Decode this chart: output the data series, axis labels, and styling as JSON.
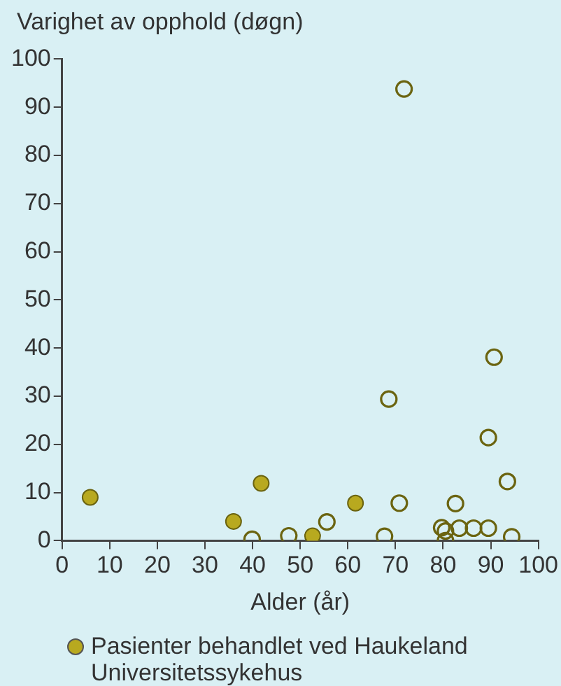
{
  "chart_data": {
    "type": "scatter",
    "ylabel": "Varighet av opphold (døgn)",
    "xlabel": "Alder (år)",
    "xlim": [
      0,
      100
    ],
    "xticks": [
      0,
      10,
      20,
      30,
      40,
      50,
      60,
      70,
      80,
      90,
      100
    ],
    "ylim": [
      0,
      100
    ],
    "yticks": [
      0,
      10,
      20,
      30,
      40,
      50,
      60,
      70,
      80,
      90,
      100
    ],
    "grid": false,
    "legend": "bottom",
    "marker": "circle",
    "series": [
      {
        "name": "Pasienter behandlet ved Haukeland Universitetssykehus",
        "color": "#b8a91f",
        "x": [
          5.9,
          36,
          41.8,
          52.6,
          61.6
        ],
        "values": [
          9,
          4,
          11.9,
          1,
          7.8
        ]
      },
      {
        "color": "#6b6410",
        "x": [
          39.9,
          47.6,
          55.6,
          67.7,
          70.8,
          79.7,
          80.5,
          80.5,
          82.6,
          83.4,
          86.4,
          89.5,
          89.5,
          93.5,
          94.4,
          71.8,
          68.6,
          90.7
        ],
        "values": [
          0.3,
          1,
          3.9,
          0.9,
          7.8,
          2.7,
          2,
          0,
          7.7,
          2.6,
          2.6,
          2.6,
          21.4,
          12.3,
          0.8,
          93.8,
          29.4,
          38.1
        ]
      }
    ]
  }
}
